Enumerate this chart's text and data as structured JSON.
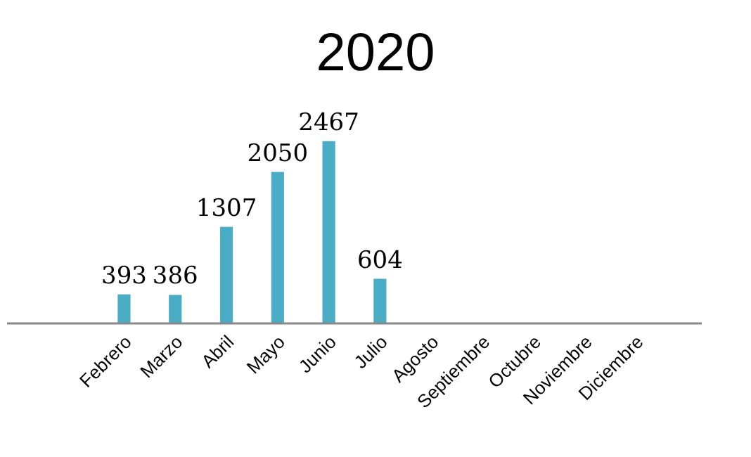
{
  "chart_data": {
    "type": "bar",
    "title": "2020",
    "categories": [
      null,
      "Febrero",
      "Marzo",
      "Abril",
      "Mayo",
      "Junio",
      "Julio",
      "Agosto",
      "Septiembre",
      "Octubre",
      "Noviembre",
      "Diciembre"
    ],
    "values": [
      null,
      393,
      386,
      1307,
      2050,
      2467,
      604,
      null,
      null,
      null,
      null,
      null
    ],
    "color": "#4bacc6",
    "data_labels": true
  }
}
